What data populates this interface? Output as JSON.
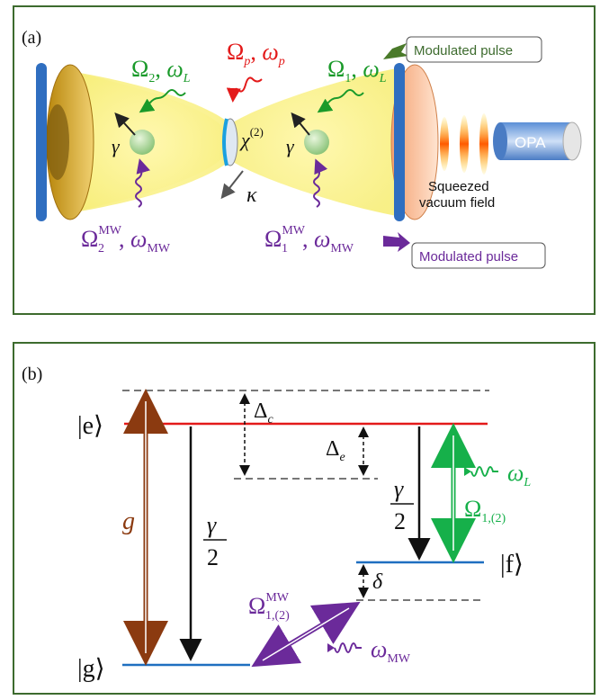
{
  "panel_a": {
    "label": "(a)",
    "omega2_sym": "Ω",
    "omega2_sub": "2",
    "omega2_freq": "ω",
    "omega2_freq_sub": "L",
    "omegap_sym": "Ω",
    "omegap_sub": "p",
    "omegap_freq": "ω",
    "omegap_freq_sub": "p",
    "omega1_sym": "Ω",
    "omega1_sub": "1",
    "omega1_freq": "ω",
    "omega1_freq_sub": "L",
    "chi": "χ",
    "chi_sup": "(2)",
    "gamma_left": "γ",
    "gamma_right": "γ",
    "kappa": "κ",
    "mw2_sym": "Ω",
    "mw2_sup": "MW",
    "mw2_sub": "2",
    "mw2_freq": "ω",
    "mw2_freq_sub": "MW",
    "mw1_sym": "Ω",
    "mw1_sup": "MW",
    "mw1_sub": "1",
    "mw1_freq": "ω",
    "mw1_freq_sub": "MW",
    "modulated_pulse_top": "Modulated pulse",
    "modulated_pulse_bottom": "Modulated pulse",
    "squeezed_line1": "Squeezed",
    "squeezed_line2": "vacuum field",
    "opa": "OPA",
    "colors": {
      "green": "#1a9a2a",
      "red": "#e31a1a",
      "purple": "#6b2a9a",
      "blue": "#3a6fb5",
      "darkgreen": "#4a7a2a"
    }
  },
  "panel_b": {
    "label": "(b)",
    "state_e": "|e⟩",
    "state_g": "|g⟩",
    "state_f": "|f⟩",
    "delta_c": "Δ",
    "delta_c_sub": "c",
    "delta_e": "Δ",
    "delta_e_sub": "e",
    "g_label": "g",
    "gamma_left_num": "γ",
    "gamma_left_den": "2",
    "gamma_right_num": "γ",
    "gamma_right_den": "2",
    "delta": "δ",
    "omega_L": "ω",
    "omega_L_sub": "L",
    "omega_12_sym": "Ω",
    "omega_12_sub": "1,(2)",
    "mw_sym": "Ω",
    "mw_sup": "MW",
    "mw_sub": "1,(2)",
    "omega_mw": "ω",
    "omega_mw_sub": "MW",
    "colors": {
      "red": "#e31a1a",
      "blue": "#1f6fc0",
      "brown": "#8b3a10",
      "green": "#16b04a",
      "purple": "#6b2a9a"
    }
  }
}
